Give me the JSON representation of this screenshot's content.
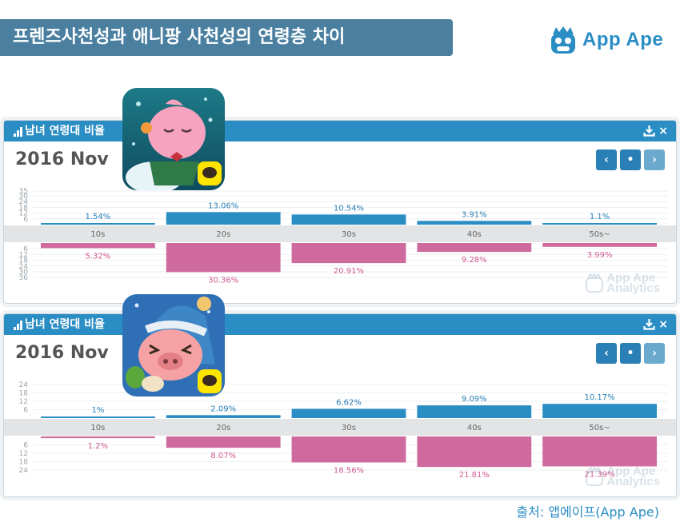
{
  "header": {
    "title": "프렌즈사천성과 애니팡 사천성의 연령층 차이",
    "brand": "App Ape"
  },
  "panels": [
    {
      "title": "남녀 연령대 비율",
      "period": "2016 Nov",
      "nav": [
        "‹",
        "•",
        "›"
      ],
      "close": "×",
      "watermark": [
        "App Ape",
        "Analytics"
      ]
    },
    {
      "title": "남녀 연령대 비율",
      "period": "2016 Nov",
      "nav": [
        "‹",
        "•",
        "›"
      ],
      "close": "×",
      "watermark": [
        "App Ape",
        "Analytics"
      ]
    }
  ],
  "chart_data": [
    {
      "type": "bar",
      "categories": [
        "10s",
        "20s",
        "30s",
        "40s",
        "50s~"
      ],
      "series": [
        {
          "values": [
            1.54,
            13.06,
            10.54,
            3.91,
            1.1
          ],
          "labels": [
            "1.54%",
            "13.06%",
            "10.54%",
            "3.91%",
            "1.1%"
          ],
          "color": "#2a8dc4"
        },
        {
          "values": [
            5.32,
            30.36,
            20.91,
            9.28,
            3.99
          ],
          "labels": [
            "5.32%",
            "30.36%",
            "20.91%",
            "9.28%",
            "3.99%"
          ],
          "color": "#cf6a9e"
        }
      ],
      "ylim": [
        0,
        35
      ],
      "top_ticks": [
        "35",
        "30",
        "24",
        "18",
        "12",
        "6"
      ],
      "bottom_ticks": [
        "6",
        "12",
        "18",
        "24",
        "30",
        "36"
      ]
    },
    {
      "type": "bar",
      "categories": [
        "10s",
        "20s",
        "30s",
        "40s",
        "50s~"
      ],
      "series": [
        {
          "values": [
            1,
            2.09,
            6.62,
            9.09,
            10.17
          ],
          "labels": [
            "1%",
            "2.09%",
            "6.62%",
            "9.09%",
            "10.17%"
          ],
          "color": "#2a8dc4"
        },
        {
          "values": [
            1.2,
            8.07,
            18.56,
            21.81,
            21.39
          ],
          "labels": [
            "1.2%",
            "8.07%",
            "18.56%",
            "21.81%",
            "21.39%"
          ],
          "color": "#cf6a9e"
        }
      ],
      "ylim": [
        0,
        24
      ],
      "top_ticks": [
        "24",
        "18",
        "12",
        "6"
      ],
      "bottom_ticks": [
        "6",
        "12",
        "18",
        "24"
      ]
    }
  ],
  "source": "출처: 앱에이프(App Ape)"
}
